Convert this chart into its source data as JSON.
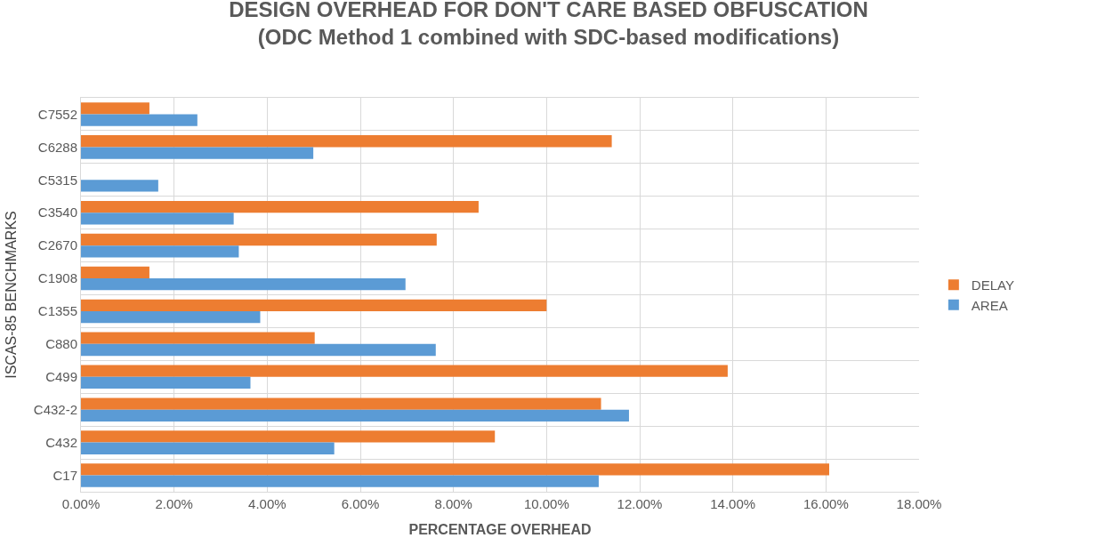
{
  "chart_data": {
    "type": "bar",
    "orientation": "horizontal",
    "title": "DESIGN OVERHEAD FOR DON'T CARE BASED OBFUSCATION\n(ODC Method 1 combined with SDC-based modifications)",
    "xlabel": "PERCENTAGE OVERHEAD",
    "ylabel": "ISCAS-85 BENCHMARKS",
    "categories": [
      "C7552",
      "C6288",
      "C5315",
      "C3540",
      "C2670",
      "C1908",
      "C1355",
      "C880",
      "C499",
      "C432-2",
      "C432",
      "C17"
    ],
    "series": [
      {
        "name": "DELAY",
        "color": "#ed7d31",
        "values": [
          1.47,
          11.4,
          0,
          8.54,
          7.64,
          1.47,
          10.0,
          5.02,
          13.89,
          11.17,
          8.89,
          16.07
        ]
      },
      {
        "name": "AREA",
        "color": "#5b9bd5",
        "values": [
          2.5,
          4.99,
          1.66,
          3.28,
          3.39,
          6.97,
          3.85,
          7.62,
          3.64,
          11.77,
          5.44,
          11.12
        ]
      }
    ],
    "xlim": [
      0,
      18
    ],
    "xticks": [
      {
        "value": 0,
        "label": "0.00%"
      },
      {
        "value": 2,
        "label": "2.00%"
      },
      {
        "value": 4,
        "label": "4.00%"
      },
      {
        "value": 6,
        "label": "6.00%"
      },
      {
        "value": 8,
        "label": "8.00%"
      },
      {
        "value": 10,
        "label": "10.00%"
      },
      {
        "value": 12,
        "label": "12.00%"
      },
      {
        "value": 14,
        "label": "14.00%"
      },
      {
        "value": 16,
        "label": "16.00%"
      },
      {
        "value": 18,
        "label": "18.00%"
      }
    ],
    "grid": true,
    "legend": "right"
  }
}
